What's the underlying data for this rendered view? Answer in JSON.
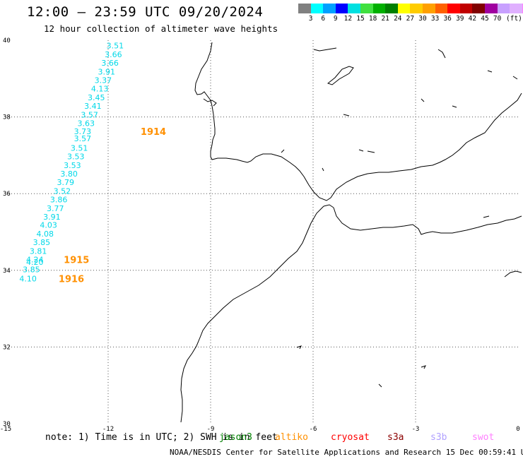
{
  "header": {
    "title": "12:00 — 23:59 UTC 09/20/2024",
    "subtitle": "12 hour collection of altimeter wave heights"
  },
  "legend": {
    "colors": [
      "#808080",
      "#00ffff",
      "#00a0ff",
      "#0000ff",
      "#00e0e0",
      "#40e040",
      "#00b000",
      "#008000",
      "#ffff00",
      "#ffcc00",
      "#ffa000",
      "#ff6000",
      "#ff0000",
      "#c00000",
      "#800000",
      "#a000a0",
      "#c8a0ff",
      "#e0b0ff",
      "#ff80ff",
      "#000000"
    ],
    "labels": [
      "3",
      "6",
      "9",
      "12",
      "15",
      "18",
      "21",
      "24",
      "27",
      "30",
      "33",
      "36",
      "39",
      "42",
      "45",
      "70"
    ],
    "unit": "(ft)"
  },
  "map": {
    "lon_min": -15,
    "lon_max": 0,
    "lat_min": 30,
    "lat_max": 40,
    "lon_ticks": [
      {
        "v": -15,
        "label": "-15"
      },
      {
        "v": -12,
        "label": "-12"
      },
      {
        "v": -9,
        "label": "-9"
      },
      {
        "v": -6,
        "label": "-6"
      },
      {
        "v": -3,
        "label": "-3"
      },
      {
        "v": 0,
        "label": "0"
      }
    ],
    "lat_ticks": [
      {
        "v": 30,
        "label": "30"
      },
      {
        "v": 32,
        "label": "32"
      },
      {
        "v": 34,
        "label": "34"
      },
      {
        "v": 36,
        "label": "36"
      },
      {
        "v": 38,
        "label": "38"
      },
      {
        "v": 40,
        "label": "40"
      }
    ],
    "wave_color": "#00d8e8",
    "time_color": "#ff9000",
    "observations": [
      {
        "lon": -12.05,
        "lat": 39.86,
        "value": "3.51"
      },
      {
        "lon": -12.1,
        "lat": 39.63,
        "value": "3.66"
      },
      {
        "lon": -12.2,
        "lat": 39.41,
        "value": "3.66"
      },
      {
        "lon": -12.3,
        "lat": 39.18,
        "value": "3.91"
      },
      {
        "lon": -12.4,
        "lat": 38.96,
        "value": "3.37"
      },
      {
        "lon": -12.5,
        "lat": 38.74,
        "value": "4.13"
      },
      {
        "lon": -12.6,
        "lat": 38.51,
        "value": "3.45"
      },
      {
        "lon": -12.7,
        "lat": 38.29,
        "value": "3.41"
      },
      {
        "lon": -12.8,
        "lat": 38.06,
        "value": "3.57"
      },
      {
        "lon": -12.9,
        "lat": 37.84,
        "value": "3.63"
      },
      {
        "lon": -13.0,
        "lat": 37.62,
        "value": "3.73"
      },
      {
        "lon": -13.0,
        "lat": 37.44,
        "value": "3.57"
      },
      {
        "lon": -13.1,
        "lat": 37.19,
        "value": "3.51"
      },
      {
        "lon": -13.2,
        "lat": 36.97,
        "value": "3.53"
      },
      {
        "lon": -13.3,
        "lat": 36.74,
        "value": "3.53"
      },
      {
        "lon": -13.4,
        "lat": 36.52,
        "value": "3.80"
      },
      {
        "lon": -13.5,
        "lat": 36.3,
        "value": "3.79"
      },
      {
        "lon": -13.6,
        "lat": 36.07,
        "value": "3.52"
      },
      {
        "lon": -13.7,
        "lat": 35.85,
        "value": "3.86"
      },
      {
        "lon": -13.8,
        "lat": 35.62,
        "value": "3.77"
      },
      {
        "lon": -13.9,
        "lat": 35.4,
        "value": "3.91"
      },
      {
        "lon": -14.0,
        "lat": 35.18,
        "value": "4.03"
      },
      {
        "lon": -14.1,
        "lat": 34.95,
        "value": "4.08"
      },
      {
        "lon": -14.2,
        "lat": 34.73,
        "value": "3.85"
      },
      {
        "lon": -14.3,
        "lat": 34.5,
        "value": "3.81"
      },
      {
        "lon": -14.4,
        "lat": 34.28,
        "value": "4.24"
      },
      {
        "lon": -14.4,
        "lat": 34.22,
        "value": "4.20"
      },
      {
        "lon": -14.5,
        "lat": 34.02,
        "value": "3.85"
      },
      {
        "lon": -14.6,
        "lat": 33.78,
        "value": "4.10"
      }
    ],
    "time_labels": [
      {
        "lon": -11.05,
        "lat": 37.62,
        "value": "1914"
      },
      {
        "lon": -13.3,
        "lat": 34.28,
        "value": "1915"
      },
      {
        "lon": -13.45,
        "lat": 33.78,
        "value": "1916"
      }
    ]
  },
  "footer": {
    "note": "note: 1) Time is in UTC; 2) SWH is in feet",
    "satellites": [
      {
        "name": "jason3",
        "color": "#008000"
      },
      {
        "name": "altiko",
        "color": "#ff9000"
      },
      {
        "name": "cryosat",
        "color": "#ff0000"
      },
      {
        "name": "s3a",
        "color": "#8b0000"
      },
      {
        "name": "s3b",
        "color": "#b0a0ff"
      },
      {
        "name": "swot",
        "color": "#ff80ff"
      }
    ],
    "credit": "NOAA/NESDIS Center for Satellite Applications and Research   15 Dec 00:59:41 UTC 2024"
  }
}
